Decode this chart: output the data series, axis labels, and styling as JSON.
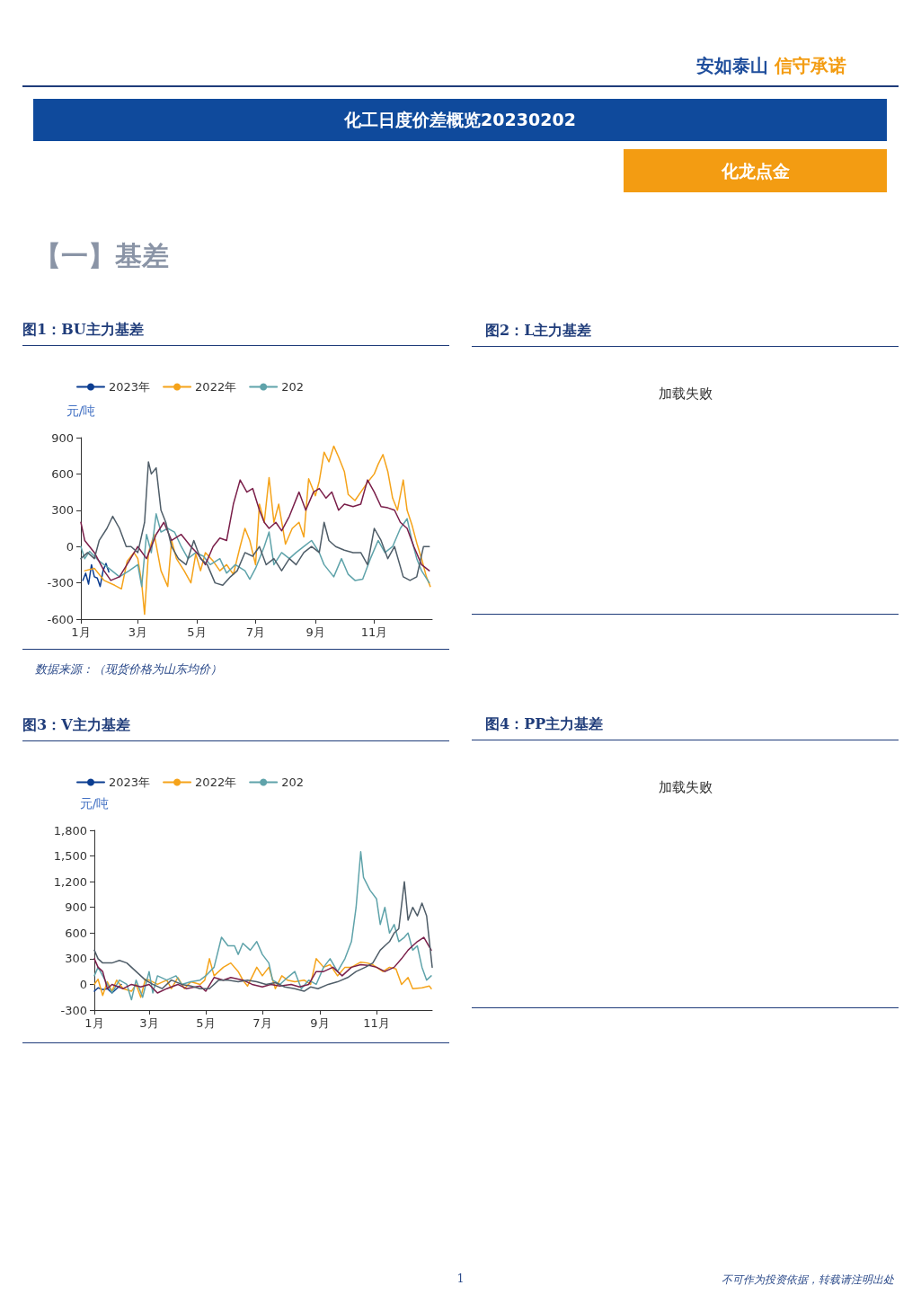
{
  "chart_data": [
    {
      "type": "other",
      "title": "化工日度价差概览20230202",
      "subtitle": "化龙点金",
      "annotations": [
        "安如泰山",
        "信守承诺",
        "【一】基差",
        "1",
        "不可作为投资依据，转载请注明出处"
      ]
    },
    {
      "type": "line",
      "title": "图1：BU主力基差",
      "ylabel": "元/吨",
      "legend": "top left",
      "grid": false,
      "xlim": [
        "--01-01",
        "--12-31"
      ],
      "xticks": [
        {
          "value": "--01-01",
          "label": "1月"
        },
        {
          "value": "--03-01",
          "label": "3月"
        },
        {
          "value": "--05-01",
          "label": "5月"
        },
        {
          "value": "--07-01",
          "label": "7月"
        },
        {
          "value": "--09-01",
          "label": "9月"
        },
        {
          "value": "--11-01",
          "label": "11月"
        }
      ],
      "ylim": [
        -600,
        900
      ],
      "yticks": [
        -600,
        -300,
        0,
        300,
        600,
        900
      ],
      "annotations": [
        "数据来源：（现货价格为山东均价）"
      ],
      "series": [
        {
          "name": "2023年",
          "color": "#0b3d91",
          "x": [
            "--01-03",
            "--01-06",
            "--01-09",
            "--01-12",
            "--01-15",
            "--01-18",
            "--01-21",
            "--01-24",
            "--01-27",
            "--01-30"
          ],
          "values": [
            -280,
            -220,
            -310,
            -150,
            -250,
            -260,
            -330,
            -200,
            -140,
            -210
          ]
        },
        {
          "name": "2022年",
          "color": "#f5a31a",
          "x": [
            "--01-05",
            "--01-15",
            "--01-25",
            "--02-05",
            "--02-12",
            "--02-18",
            "--02-25",
            "--03-01",
            "--03-05",
            "--03-08",
            "--03-12",
            "--03-18",
            "--03-25",
            "--04-01",
            "--04-05",
            "--04-10",
            "--04-18",
            "--04-25",
            "--04-30",
            "--05-05",
            "--05-10",
            "--05-18",
            "--05-25",
            "--06-01",
            "--06-08",
            "--06-15",
            "--06-20",
            "--06-25",
            "--07-01",
            "--07-05",
            "--07-10",
            "--07-15",
            "--07-20",
            "--07-25",
            "--08-01",
            "--08-08",
            "--08-15",
            "--08-20",
            "--08-25",
            "--09-01",
            "--09-05",
            "--09-10",
            "--09-15",
            "--09-20",
            "--09-25",
            "--10-01",
            "--10-05",
            "--10-12",
            "--10-18",
            "--10-25",
            "--11-01",
            "--11-05",
            "--11-10",
            "--11-15",
            "--11-20",
            "--11-25",
            "--12-01",
            "--12-05",
            "--12-10",
            "--12-15",
            "--12-20",
            "--12-25",
            "--12-29"
          ],
          "values": [
            -200,
            -180,
            -280,
            -320,
            -350,
            -120,
            -50,
            -100,
            -300,
            -560,
            -50,
            100,
            -200,
            -330,
            50,
            -100,
            -200,
            -300,
            -60,
            -200,
            -50,
            -120,
            -200,
            -150,
            -230,
            0,
            150,
            50,
            -150,
            350,
            200,
            570,
            200,
            350,
            20,
            150,
            200,
            80,
            560,
            420,
            540,
            780,
            700,
            830,
            740,
            620,
            430,
            380,
            450,
            530,
            600,
            680,
            760,
            620,
            400,
            300,
            550,
            300,
            180,
            30,
            -100,
            -250,
            -330
          ]
        },
        {
          "name": "202",
          "color": "#5fa3aa",
          "x": [
            "--01-01",
            "--01-05",
            "--01-10",
            "--01-20",
            "--01-30",
            "--02-10",
            "--02-20",
            "--03-01",
            "--03-05",
            "--03-10",
            "--03-15",
            "--03-20",
            "--03-25",
            "--04-01",
            "--04-08",
            "--04-15",
            "--04-22",
            "--04-30",
            "--05-08",
            "--05-15",
            "--05-25",
            "--06-01",
            "--06-10",
            "--06-20",
            "--06-25",
            "--07-01",
            "--07-10",
            "--07-15",
            "--07-20",
            "--07-28",
            "--08-05",
            "--08-12",
            "--08-20",
            "--08-28",
            "--09-05",
            "--09-10",
            "--09-15",
            "--09-20",
            "--09-28",
            "--10-05",
            "--10-12",
            "--10-20",
            "--10-28",
            "--11-05",
            "--11-12",
            "--11-20",
            "--11-28",
            "--12-05",
            "--12-10",
            "--12-15",
            "--12-20",
            "--12-28"
          ],
          "values": [
            0,
            -100,
            -40,
            -120,
            -180,
            -250,
            -200,
            -150,
            -330,
            100,
            -50,
            270,
            120,
            150,
            120,
            0,
            -100,
            -50,
            -80,
            -150,
            -100,
            -220,
            -150,
            -200,
            -270,
            -180,
            0,
            120,
            -150,
            -50,
            -100,
            -50,
            0,
            50,
            -50,
            -150,
            -200,
            -250,
            -100,
            -230,
            -280,
            -270,
            -100,
            50,
            -50,
            0,
            150,
            230,
            50,
            -100,
            -200,
            -300
          ]
        },
        {
          "color": "#7a1f4a",
          "x": [
            "--01-01",
            "--01-05",
            "--01-10",
            "--01-15",
            "--01-25",
            "--02-01",
            "--02-10",
            "--02-20",
            "--03-01",
            "--03-10",
            "--03-20",
            "--03-28",
            "--04-05",
            "--04-15",
            "--04-25",
            "--05-01",
            "--05-10",
            "--05-18",
            "--05-25",
            "--06-01",
            "--06-08",
            "--06-15",
            "--06-22",
            "--06-28",
            "--07-05",
            "--07-10",
            "--07-15",
            "--07-22",
            "--07-28",
            "--08-05",
            "--08-15",
            "--08-22",
            "--08-30",
            "--09-05",
            "--09-12",
            "--09-18",
            "--09-25",
            "--10-01",
            "--10-10",
            "--10-18",
            "--10-25",
            "--11-01",
            "--11-08",
            "--11-15",
            "--11-22",
            "--11-28",
            "--12-05",
            "--12-12",
            "--12-20",
            "--12-28"
          ],
          "values": [
            200,
            50,
            0,
            -50,
            -200,
            -280,
            -250,
            -120,
            0,
            -100,
            100,
            200,
            50,
            100,
            0,
            -50,
            -150,
            0,
            70,
            50,
            350,
            550,
            450,
            480,
            300,
            200,
            150,
            200,
            130,
            250,
            450,
            300,
            450,
            480,
            400,
            450,
            300,
            350,
            330,
            350,
            550,
            450,
            330,
            320,
            300,
            200,
            150,
            0,
            -150,
            -200
          ]
        },
        {
          "color": "#4f5d68",
          "x": [
            "--01-01",
            "--01-08",
            "--01-15",
            "--01-20",
            "--01-28",
            "--02-03",
            "--02-10",
            "--02-17",
            "--02-22",
            "--03-01",
            "--03-08",
            "--03-12",
            "--03-15",
            "--03-20",
            "--03-25",
            "--03-30",
            "--04-05",
            "--04-12",
            "--04-20",
            "--04-28",
            "--05-05",
            "--05-12",
            "--05-20",
            "--05-28",
            "--06-05",
            "--06-12",
            "--06-20",
            "--06-28",
            "--07-05",
            "--07-12",
            "--07-20",
            "--07-28",
            "--08-05",
            "--08-12",
            "--08-20",
            "--08-28",
            "--09-05",
            "--09-10",
            "--09-15",
            "--09-22",
            "--10-01",
            "--10-10",
            "--10-18",
            "--10-25",
            "--11-01",
            "--11-08",
            "--11-15",
            "--11-22",
            "--12-01",
            "--12-08",
            "--12-15",
            "--12-22",
            "--12-28"
          ],
          "values": [
            -100,
            -50,
            -100,
            50,
            150,
            250,
            150,
            0,
            0,
            -50,
            200,
            700,
            600,
            650,
            300,
            200,
            0,
            -100,
            -150,
            50,
            -100,
            -150,
            -300,
            -320,
            -250,
            -200,
            -50,
            -80,
            0,
            -150,
            -100,
            -200,
            -100,
            -150,
            -50,
            0,
            -50,
            200,
            50,
            0,
            -30,
            -50,
            -50,
            -150,
            150,
            50,
            -100,
            0,
            -250,
            -280,
            -250,
            0,
            0
          ]
        }
      ]
    },
    {
      "type": "other",
      "title": "图2：L主力基差",
      "annotations": [
        "加载失败"
      ]
    },
    {
      "type": "line",
      "title": "图3：V主力基差",
      "ylabel": "元/吨",
      "legend": "top left",
      "grid": false,
      "xlim": [
        "--01-01",
        "--12-31"
      ],
      "xticks": [
        {
          "value": "--01-01",
          "label": "1月"
        },
        {
          "value": "--03-01",
          "label": "3月"
        },
        {
          "value": "--05-01",
          "label": "5月"
        },
        {
          "value": "--07-01",
          "label": "7月"
        },
        {
          "value": "--09-01",
          "label": "9月"
        },
        {
          "value": "--11-01",
          "label": "11月"
        }
      ],
      "ylim": [
        -300,
        1800
      ],
      "yticks": [
        -300,
        0,
        300,
        600,
        900,
        {
          "value": 1200,
          "label": "1,200"
        },
        {
          "value": 1500,
          "label": "1,500"
        },
        {
          "value": 1800,
          "label": "1,800"
        }
      ],
      "series": [
        {
          "name": "2023年",
          "color": "#0b3d91",
          "x": [
            "--01-01",
            "--01-05",
            "--01-10",
            "--01-15",
            "--01-20",
            "--01-25",
            "--01-30"
          ],
          "values": [
            -80,
            -40,
            -60,
            -50,
            -100,
            -50,
            0
          ]
        },
        {
          "name": "2022年",
          "color": "#f5a31a",
          "x": [
            "--01-01",
            "--01-05",
            "--01-10",
            "--01-15",
            "--01-20",
            "--01-25",
            "--02-01",
            "--02-10",
            "--02-15",
            "--02-20",
            "--02-25",
            "--03-01",
            "--03-10",
            "--03-20",
            "--03-25",
            "--04-01",
            "--04-08",
            "--04-15",
            "--04-25",
            "--04-30",
            "--05-05",
            "--05-10",
            "--05-20",
            "--05-28",
            "--06-05",
            "--06-10",
            "--06-15",
            "--06-25",
            "--07-01",
            "--07-08",
            "--07-15",
            "--07-22",
            "--07-28",
            "--08-05",
            "--08-15",
            "--08-22",
            "--08-28",
            "--09-05",
            "--09-12",
            "--09-20",
            "--09-28",
            "--10-05",
            "--10-15",
            "--10-22",
            "--10-28",
            "--11-01",
            "--11-08",
            "--11-15",
            "--11-22",
            "--11-28",
            "--12-05",
            "--12-10",
            "--12-20",
            "--12-28",
            "--12-30"
          ],
          "values": [
            0,
            60,
            -130,
            30,
            -80,
            50,
            -50,
            -80,
            0,
            -150,
            60,
            50,
            0,
            50,
            -50,
            80,
            -50,
            30,
            0,
            50,
            300,
            100,
            200,
            250,
            150,
            50,
            -20,
            200,
            100,
            200,
            -50,
            100,
            50,
            30,
            50,
            0,
            300,
            200,
            230,
            100,
            200,
            200,
            260,
            250,
            230,
            200,
            150,
            200,
            180,
            0,
            80,
            -50,
            -40,
            -20,
            -50
          ]
        },
        {
          "name": "202",
          "color": "#5fa3aa",
          "x": [
            "--01-01",
            "--01-05",
            "--01-10",
            "--01-15",
            "--01-20",
            "--01-28",
            "--02-05",
            "--02-10",
            "--02-15",
            "--02-22",
            "--03-01",
            "--03-05",
            "--03-10",
            "--03-20",
            "--03-30",
            "--04-05",
            "--04-15",
            "--04-25",
            "--05-01",
            "--05-10",
            "--05-18",
            "--05-25",
            "--06-01",
            "--06-05",
            "--06-10",
            "--06-18",
            "--06-25",
            "--07-01",
            "--07-08",
            "--07-12",
            "--07-20",
            "--07-28",
            "--08-05",
            "--08-12",
            "--08-20",
            "--08-28",
            "--09-05",
            "--09-12",
            "--09-20",
            "--09-28",
            "--10-05",
            "--10-10",
            "--10-15",
            "--10-18",
            "--10-25",
            "--11-01",
            "--11-05",
            "--11-10",
            "--11-15",
            "--11-20",
            "--11-25",
            "--12-01",
            "--12-05",
            "--12-10",
            "--12-15",
            "--12-20",
            "--12-25",
            "--12-30"
          ],
          "values": [
            100,
            200,
            100,
            0,
            -100,
            50,
            0,
            -180,
            50,
            -150,
            150,
            -100,
            100,
            50,
            100,
            0,
            30,
            50,
            100,
            200,
            550,
            450,
            450,
            350,
            480,
            400,
            500,
            350,
            250,
            50,
            0,
            80,
            150,
            -50,
            50,
            0,
            200,
            300,
            150,
            300,
            500,
            900,
            1550,
            1250,
            1100,
            1000,
            700,
            900,
            600,
            700,
            500,
            550,
            600,
            400,
            450,
            200,
            50,
            100
          ]
        },
        {
          "color": "#7a1f4a",
          "x": [
            "--01-01",
            "--01-05",
            "--01-10",
            "--01-15",
            "--01-20",
            "--02-01",
            "--02-10",
            "--02-20",
            "--03-01",
            "--03-10",
            "--03-20",
            "--04-01",
            "--04-10",
            "--04-25",
            "--05-01",
            "--05-10",
            "--05-20",
            "--05-28",
            "--06-10",
            "--06-20",
            "--07-01",
            "--07-10",
            "--07-20",
            "--08-01",
            "--08-10",
            "--08-20",
            "--08-28",
            "--09-05",
            "--09-15",
            "--09-25",
            "--10-05",
            "--10-15",
            "--10-25",
            "--11-01",
            "--11-10",
            "--11-20",
            "--11-28",
            "--12-05",
            "--12-10",
            "--12-15",
            "--12-22",
            "--12-30"
          ],
          "values": [
            300,
            200,
            150,
            -50,
            0,
            -50,
            0,
            -30,
            0,
            -100,
            -50,
            0,
            -50,
            -20,
            -80,
            80,
            50,
            80,
            50,
            0,
            -30,
            0,
            -20,
            0,
            -30,
            0,
            150,
            150,
            200,
            100,
            200,
            230,
            220,
            200,
            150,
            200,
            300,
            400,
            450,
            500,
            550,
            400
          ]
        },
        {
          "color": "#4f5d68",
          "x": [
            "--01-01",
            "--01-05",
            "--01-10",
            "--01-20",
            "--01-28",
            "--02-05",
            "--02-15",
            "--02-25",
            "--03-05",
            "--03-15",
            "--03-25",
            "--04-05",
            "--04-15",
            "--04-25",
            "--05-05",
            "--05-15",
            "--05-25",
            "--06-05",
            "--06-15",
            "--06-25",
            "--07-05",
            "--07-15",
            "--07-25",
            "--08-05",
            "--08-15",
            "--08-22",
            "--08-30",
            "--09-10",
            "--09-20",
            "--10-01",
            "--10-10",
            "--10-20",
            "--10-28",
            "--11-05",
            "--11-10",
            "--11-15",
            "--11-20",
            "--11-25",
            "--12-01",
            "--12-05",
            "--12-10",
            "--12-15",
            "--12-20",
            "--12-25",
            "--12-28",
            "--12-31"
          ],
          "values": [
            400,
            300,
            250,
            250,
            280,
            250,
            150,
            50,
            0,
            -50,
            50,
            0,
            -20,
            -50,
            -50,
            50,
            50,
            30,
            50,
            30,
            0,
            20,
            -30,
            -50,
            -80,
            -30,
            -50,
            0,
            30,
            80,
            150,
            200,
            250,
            400,
            450,
            500,
            600,
            650,
            1200,
            750,
            900,
            800,
            950,
            800,
            500,
            200
          ]
        }
      ]
    },
    {
      "type": "other",
      "title": "图4：PP主力基差",
      "annotations": [
        "加载失败"
      ]
    }
  ]
}
